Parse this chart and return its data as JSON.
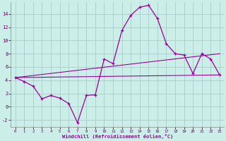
{
  "xlabel": "Windchill (Refroidissement éolien,°C)",
  "background_color": "#cceee8",
  "grid_color": "#aacccc",
  "line_color": "#990099",
  "x_hours": [
    0,
    1,
    2,
    3,
    4,
    5,
    6,
    7,
    8,
    9,
    10,
    11,
    12,
    13,
    14,
    15,
    16,
    17,
    18,
    19,
    20,
    21,
    22,
    23
  ],
  "windchill": [
    4.4,
    3.8,
    3.1,
    1.2,
    1.7,
    1.3,
    0.5,
    -2.4,
    1.7,
    1.8,
    7.2,
    6.5,
    11.5,
    13.8,
    15.0,
    15.3,
    13.3,
    9.5,
    8.0,
    7.8,
    5.0,
    8.0,
    7.2,
    4.8
  ],
  "trend_upper_y0": 4.4,
  "trend_upper_y1": 8.0,
  "trend_lower_y0": 4.4,
  "trend_lower_y1": 4.8,
  "ylim": [
    -3,
    15.8
  ],
  "yticks": [
    -2,
    0,
    2,
    4,
    6,
    8,
    10,
    12,
    14
  ],
  "xticks": [
    0,
    1,
    2,
    3,
    4,
    5,
    6,
    7,
    8,
    9,
    10,
    11,
    12,
    13,
    14,
    15,
    16,
    17,
    18,
    19,
    20,
    21,
    22,
    23
  ]
}
